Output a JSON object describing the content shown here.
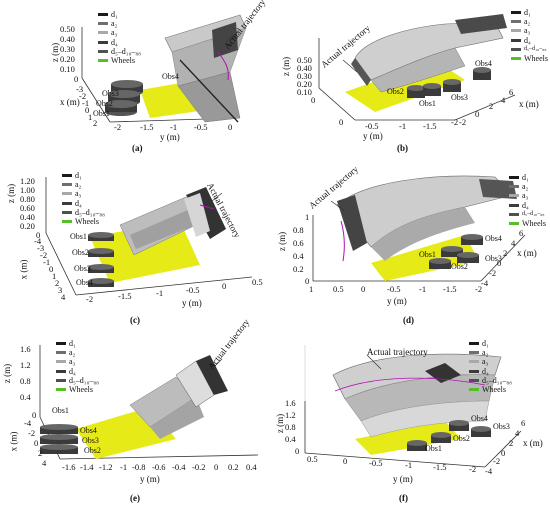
{
  "panels": {
    "a": {
      "caption": "(a)",
      "z_label": "z (m)",
      "x_label": "x (m)",
      "y_label": "y (m)",
      "z_ticks": [
        "0.50",
        "0.40",
        "0.30",
        "0.20",
        "0.10",
        "0"
      ],
      "x_ticks": [
        "-3",
        "-2",
        "-1",
        "0",
        "1",
        "2"
      ],
      "y_ticks": [
        "-2",
        "-1.5",
        "-1",
        "-0.5",
        "0"
      ],
      "trajectory": "Actual trajectory",
      "obstacles": [
        "Obs4",
        "Obs3",
        "Obs2",
        "Obs1"
      ],
      "legend": [
        "d₁",
        "a₂",
        "a₃",
        "d₄",
        "d₅–d₁₀–₈₈",
        "Wheels"
      ]
    },
    "b": {
      "caption": "(b)",
      "z_label": "z (m)",
      "x_label": "x (m)",
      "y_label": "y (m)",
      "z_ticks": [
        "0.50",
        "0.40",
        "0.30",
        "0.20",
        "0.10",
        "0"
      ],
      "x_ticks": [
        "6",
        "4",
        "2",
        "0",
        "-2"
      ],
      "y_ticks": [
        "0",
        "-0.5",
        "-1",
        "-1.5",
        "-2"
      ],
      "trajectory": "Actual trajectory",
      "obstacles": [
        "Obs4",
        "Obs2",
        "Obs3",
        "Obs1"
      ],
      "legend": [
        "d₁",
        "a₂",
        "a₃",
        "d₄",
        "d₅–d₁₀–₈₈",
        "Wheels"
      ]
    },
    "c": {
      "caption": "(c)",
      "z_label": "z (m)",
      "x_label": "x (m)",
      "y_label": "y (m)",
      "z_ticks": [
        "1.20",
        "1.00",
        "0.80",
        "0.60",
        "0.40",
        "0.20",
        "0"
      ],
      "x_ticks": [
        "-4",
        "-3",
        "-2",
        "-1",
        "0",
        "1",
        "2",
        "3",
        "4"
      ],
      "y_ticks": [
        "-2",
        "-1.5",
        "-1",
        "-0.5",
        "0",
        "0.5"
      ],
      "trajectory": "Actual trajectory",
      "obstacles": [
        "Obs1",
        "Obs2",
        "Obs3",
        "Obs4"
      ],
      "legend": [
        "d₁",
        "a₂",
        "a₃",
        "d₄",
        "d₅–d₁₀–₈₈",
        "Wheels"
      ]
    },
    "d": {
      "caption": "(d)",
      "z_label": "z (m)",
      "x_label": "x (m)",
      "y_label": "y (m)",
      "z_ticks": [
        "1",
        "0.8",
        "0.6",
        "0.4",
        "0.2",
        "0"
      ],
      "x_ticks": [
        "6",
        "4",
        "2",
        "0",
        "-2",
        "-4"
      ],
      "y_ticks": [
        "1",
        "0.5",
        "0",
        "-0.5",
        "-1",
        "-1.5",
        "-2"
      ],
      "trajectory": "Actual trajectory",
      "obstacles": [
        "Obs4",
        "Obs1",
        "Obs2",
        "Obs3"
      ],
      "legend": [
        "d₁",
        "a₂",
        "a₃",
        "d₄",
        "d₅–d₁₀–₈₈",
        "Wheels"
      ]
    },
    "e": {
      "caption": "(e)",
      "z_label": "z (m)",
      "x_label": "x (m)",
      "y_label": "y (m)",
      "z_ticks": [
        "1.6",
        "1.2",
        "0.8",
        "0.4",
        "0"
      ],
      "x_ticks": [
        "-4",
        "-2",
        "0",
        "2",
        "4"
      ],
      "y_ticks": [
        "-1.6",
        "-1.4",
        "-1.2",
        "-1",
        "-0.8",
        "-0.6",
        "-0.4",
        "-0.2",
        "0",
        "0.2",
        "0.4"
      ],
      "trajectory": "Actual trajectory",
      "obstacles": [
        "Obs1",
        "Obs4",
        "Obs3",
        "Obs2"
      ],
      "legend": [
        "d₁",
        "a₂",
        "a₃",
        "d₄",
        "d₅–d₁₀–₈₈",
        "Wheels"
      ]
    },
    "f": {
      "caption": "(f)",
      "z_label": "z (m)",
      "x_label": "x (m)",
      "y_label": "y (m)",
      "z_ticks": [
        "1.6",
        "1.2",
        "0.8",
        "0.4",
        "0"
      ],
      "x_ticks": [
        "6",
        "4",
        "2",
        "0",
        "-2",
        "-4"
      ],
      "y_ticks": [
        "0.5",
        "0",
        "-0.5",
        "-1",
        "-1.5",
        "-2"
      ],
      "trajectory": "Actual trajectory",
      "obstacles": [
        "Obs4",
        "Obs3",
        "Obs2",
        "Obs1"
      ],
      "legend": [
        "d₁",
        "a₂",
        "a₃",
        "d₄",
        "d₅–d₁₀–₈₈",
        "Wheels"
      ]
    }
  },
  "legend_colors": [
    "#1a1a1a",
    "#6e6e6e",
    "#a8a8a8",
    "#3b3b3b",
    "#505050",
    "#55c026"
  ],
  "colors": {
    "wheels_area": "#e6ea17",
    "robot_gray": "#b8b8b8",
    "obstacle": "#3a3a3a",
    "trajectory": "#b012b0"
  }
}
